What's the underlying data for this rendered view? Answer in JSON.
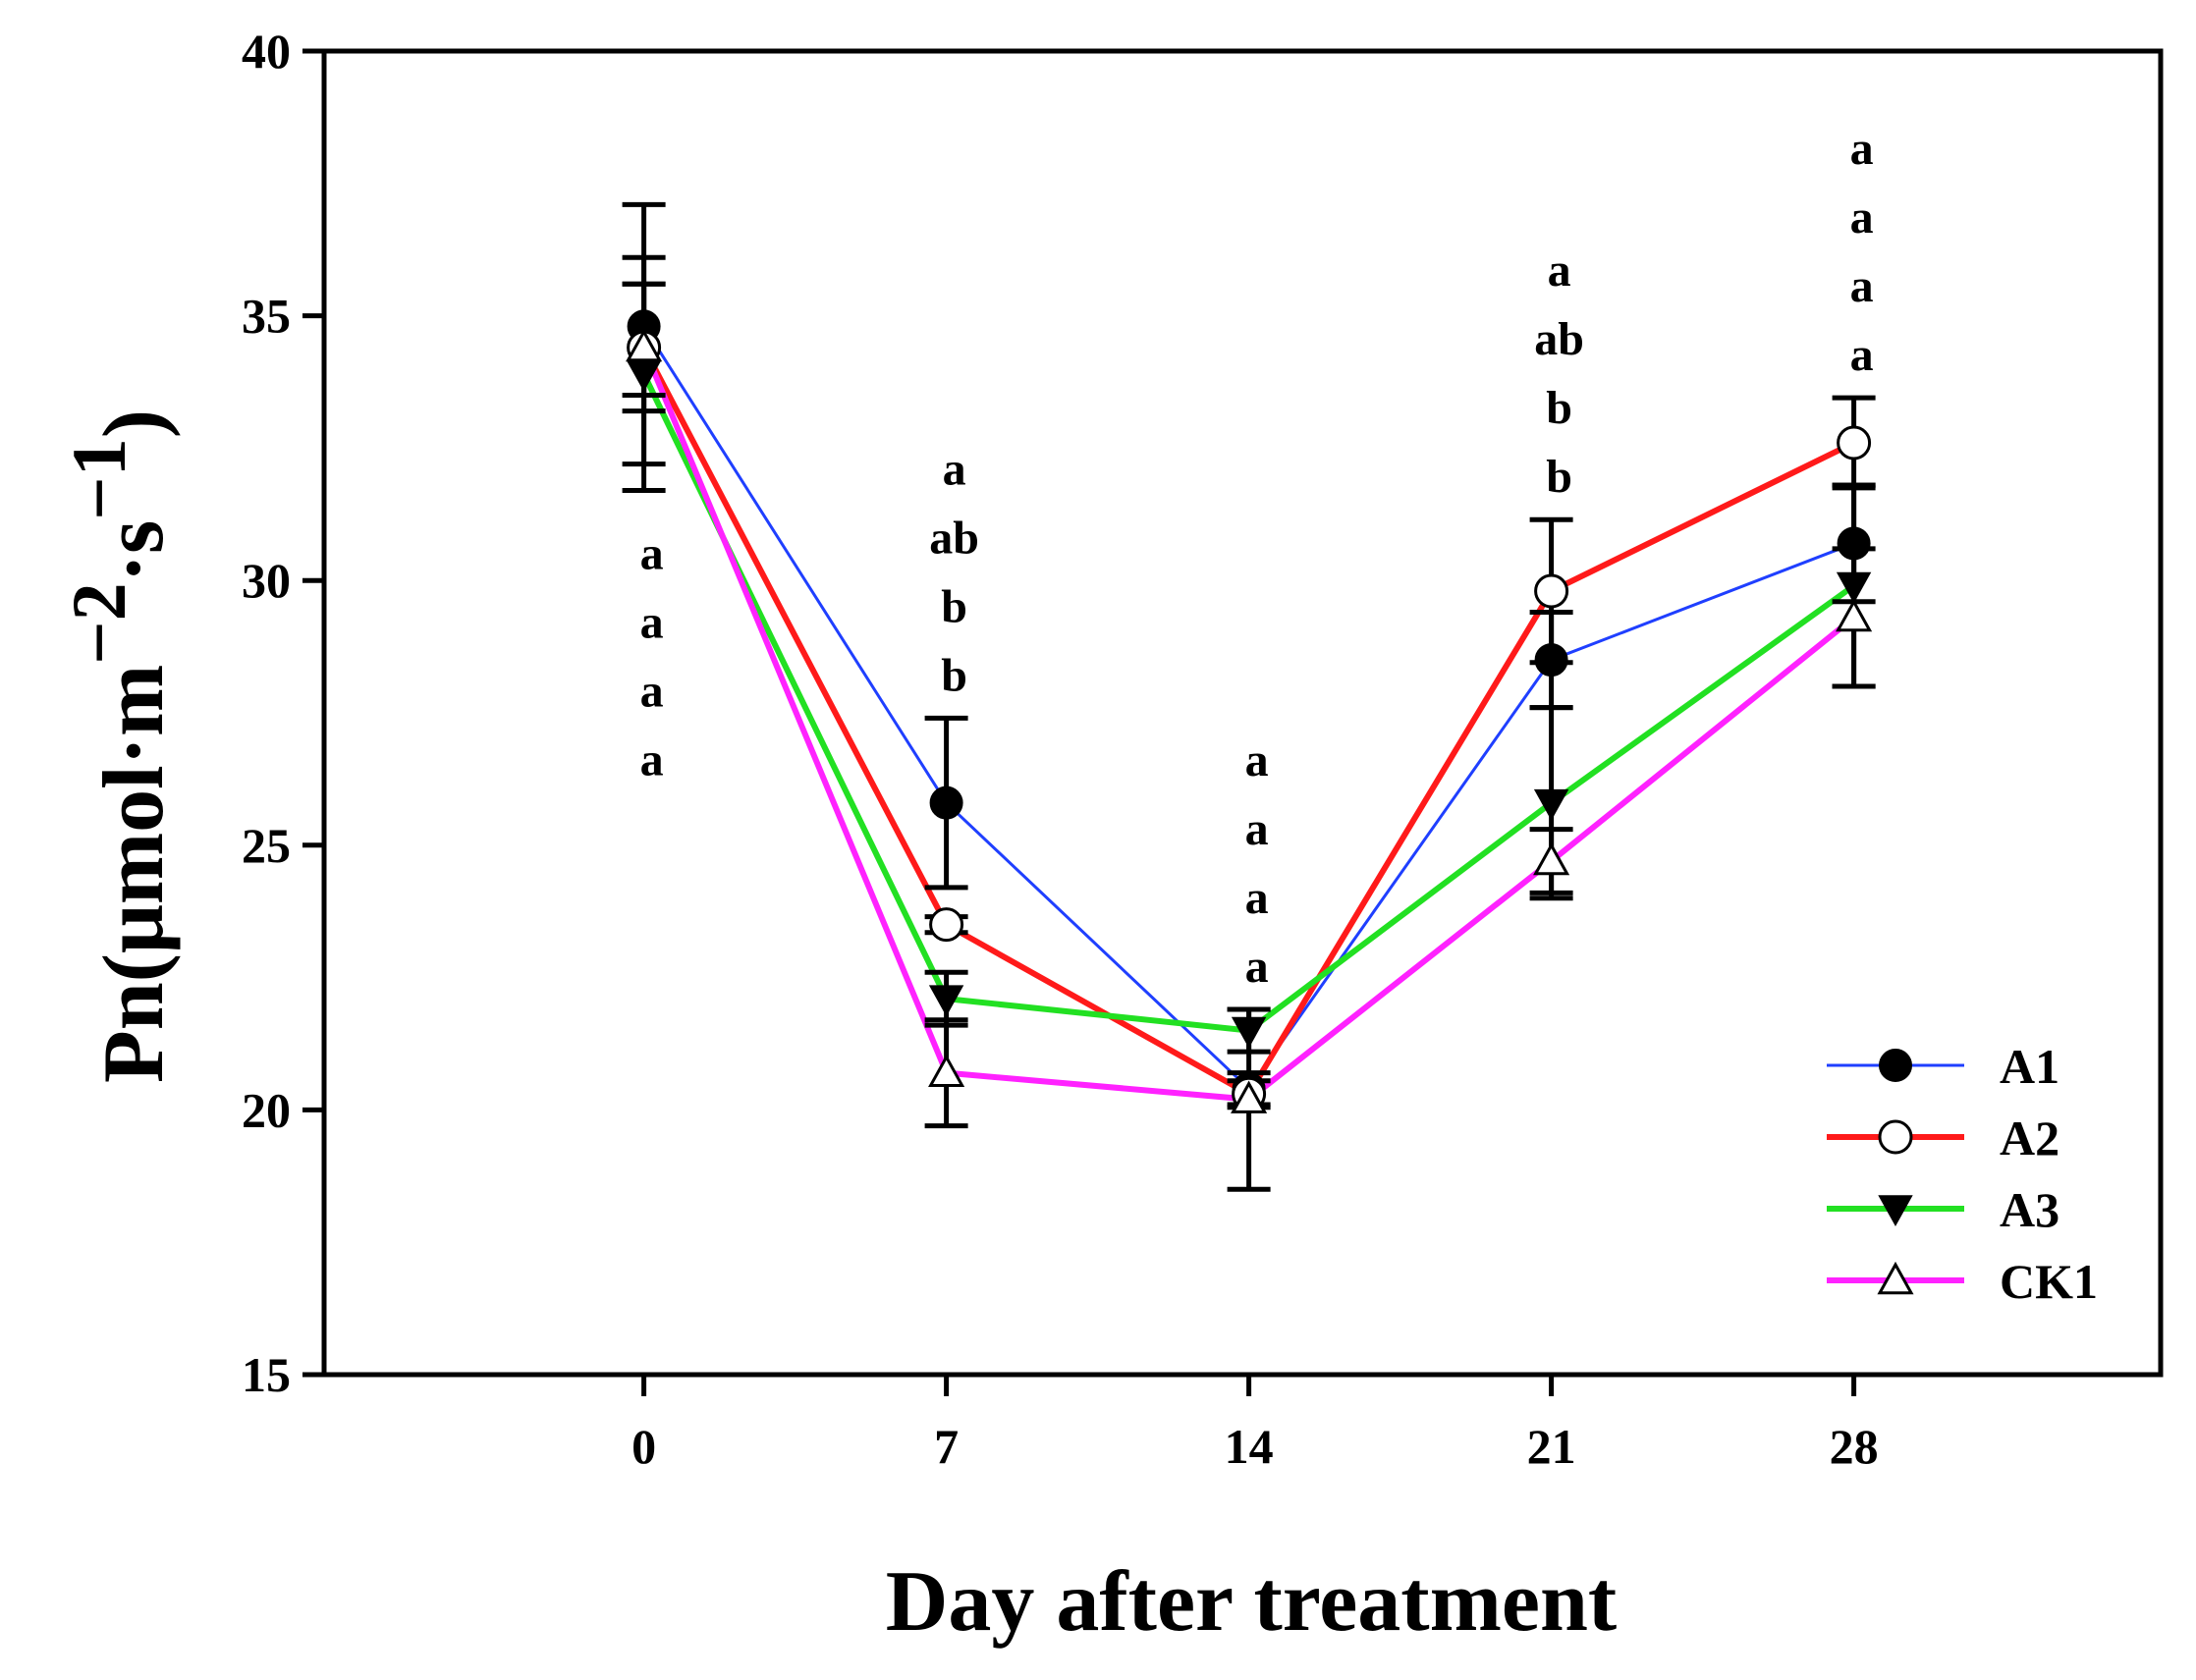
{
  "chart_data": {
    "type": "line",
    "title": "",
    "xlabel": "Day after treatment",
    "ylabel": {
      "prefix": "Pn(μmol·m",
      "exp1": "−2",
      "middle": "·s",
      "exp2": "−1",
      "suffix": ")"
    },
    "x": [
      0,
      7,
      14,
      21,
      28
    ],
    "x_tick_labels": [
      "0",
      "7",
      "14",
      "21",
      "28"
    ],
    "xlim": [
      -7.4,
      35.1
    ],
    "ylim": [
      15,
      40
    ],
    "y_ticks": [
      15,
      20,
      25,
      30,
      35,
      40
    ],
    "y_tick_labels": [
      "15",
      "20",
      "25",
      "30",
      "35",
      "40"
    ],
    "grid": false,
    "legend_position": "bottom-right",
    "series": [
      {
        "name": "A1",
        "color": "#1f3fff",
        "marker": "filled-circle",
        "values": [
          34.8,
          25.8,
          20.4,
          28.5,
          30.7
        ],
        "errors": [
          1.3,
          1.6,
          0.3,
          0.9,
          1.1
        ]
      },
      {
        "name": "A2",
        "color": "#ff1a1a",
        "marker": "open-circle",
        "values": [
          34.4,
          23.5,
          20.3,
          29.8,
          32.6
        ],
        "errors": [
          1.2,
          0.15,
          0.25,
          1.35,
          0.85
        ]
      },
      {
        "name": "A3",
        "color": "#22e022",
        "marker": "filled-triangle-down",
        "values": [
          33.9,
          22.1,
          21.5,
          25.8,
          29.9
        ],
        "errors": [
          1.7,
          0.5,
          0.4,
          1.8,
          1.9
        ]
      },
      {
        "name": "CK1",
        "color": "#ff22ff",
        "marker": "open-triangle-up",
        "values": [
          34.4,
          20.7,
          20.2,
          24.7,
          29.3
        ],
        "errors": [
          2.7,
          1.0,
          1.7,
          0.6,
          1.3
        ]
      }
    ],
    "annotations": [
      {
        "x": 0,
        "position": "below",
        "labels": [
          "a",
          "a",
          "a",
          "a"
        ]
      },
      {
        "x": 7,
        "position": "above",
        "labels": [
          "a",
          "ab",
          "b",
          "b"
        ]
      },
      {
        "x": 14,
        "position": "above",
        "labels": [
          "a",
          "a",
          "a",
          "a"
        ]
      },
      {
        "x": 21,
        "position": "above",
        "labels": [
          "a",
          "ab",
          "b",
          "b"
        ]
      },
      {
        "x": 28,
        "position": "above",
        "labels": [
          "a",
          "a",
          "a",
          "a"
        ]
      }
    ]
  }
}
